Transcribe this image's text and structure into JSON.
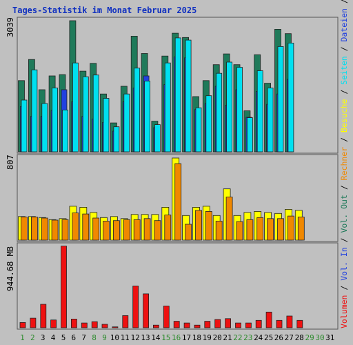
{
  "chart_data": [
    {
      "type": "bar",
      "title": "Tages-Statistik im Monat Februar 2025",
      "categories": [
        "1",
        "2",
        "3",
        "4",
        "5",
        "6",
        "7",
        "8",
        "9",
        "10",
        "11",
        "12",
        "13",
        "14",
        "15",
        "16",
        "17",
        "18",
        "19",
        "20",
        "21",
        "22",
        "23",
        "24",
        "25",
        "26",
        "27",
        "28",
        "29",
        "30",
        "31"
      ],
      "ymax_label": "3039",
      "ylim": [
        0,
        3039
      ],
      "grid": false,
      "legend": "right",
      "series": [
        {
          "name": "Anfragen",
          "color": "#1f7a5a",
          "values": [
            1650,
            2140,
            1440,
            1760,
            1790,
            3039,
            1870,
            2050,
            1340,
            670,
            1520,
            2680,
            2280,
            710,
            2220,
            2750,
            2650,
            1280,
            1650,
            2020,
            2270,
            2020,
            950,
            2250,
            1590,
            2840,
            2740,
            null,
            null,
            null,
            null
          ]
        },
        {
          "name": "Dateien",
          "color": "#2040e0",
          "values": [
            1050,
            820,
            820,
            960,
            1440,
            1160,
            820,
            760,
            680,
            480,
            1160,
            1480,
            1760,
            560,
            1560,
            2200,
            2180,
            980,
            1120,
            1520,
            1080,
            1440,
            800,
            1400,
            1100,
            1340,
            1680,
            null,
            null,
            null,
            null
          ]
        },
        {
          "name": "Seiten",
          "color": "#00e0f0",
          "values": [
            1200,
            1900,
            1120,
            1480,
            970,
            2060,
            1740,
            1780,
            1240,
            580,
            1340,
            1940,
            1640,
            630,
            2060,
            2640,
            2590,
            1020,
            1300,
            1820,
            2080,
            1960,
            790,
            1880,
            1480,
            2440,
            2520,
            null,
            null,
            null,
            null
          ]
        }
      ]
    },
    {
      "type": "bar",
      "categories": [
        "1",
        "2",
        "3",
        "4",
        "5",
        "6",
        "7",
        "8",
        "9",
        "10",
        "11",
        "12",
        "13",
        "14",
        "15",
        "16",
        "17",
        "18",
        "19",
        "20",
        "21",
        "22",
        "23",
        "24",
        "25",
        "26",
        "27",
        "28",
        "29",
        "30",
        "31"
      ],
      "ymax_label": "807",
      "ylim": [
        0,
        807
      ],
      "grid": false,
      "legend": "right",
      "series": [
        {
          "name": "Besuche",
          "color": "#ffff00",
          "values": [
            230,
            230,
            220,
            200,
            210,
            330,
            320,
            270,
            220,
            230,
            210,
            250,
            250,
            250,
            320,
            800,
            240,
            320,
            330,
            240,
            500,
            240,
            270,
            280,
            270,
            260,
            300,
            290,
            null,
            null,
            null
          ]
        },
        {
          "name": "Rechner",
          "color": "#f08800",
          "values": [
            225,
            225,
            215,
            195,
            200,
            265,
            255,
            215,
            185,
            190,
            200,
            200,
            210,
            190,
            245,
            745,
            155,
            290,
            280,
            185,
            420,
            180,
            200,
            220,
            210,
            210,
            235,
            225,
            null,
            null,
            null
          ]
        }
      ]
    },
    {
      "type": "bar",
      "categories": [
        "1",
        "2",
        "3",
        "4",
        "5",
        "6",
        "7",
        "8",
        "9",
        "10",
        "11",
        "12",
        "13",
        "14",
        "15",
        "16",
        "17",
        "18",
        "19",
        "20",
        "21",
        "22",
        "23",
        "24",
        "25",
        "26",
        "27",
        "28",
        "29",
        "30",
        "31"
      ],
      "ymax_label": "944.68 MB",
      "ylim": [
        0,
        944.68
      ],
      "grid": false,
      "legend": "right",
      "series": [
        {
          "name": "Volumen",
          "color": "#ee1111",
          "values": [
            60,
            110,
            270,
            90,
            940,
            100,
            55,
            70,
            40,
            10,
            140,
            480,
            390,
            30,
            250,
            75,
            55,
            30,
            75,
            95,
            105,
            55,
            55,
            85,
            180,
            85,
            135,
            85,
            null,
            null,
            null
          ]
        }
      ]
    }
  ],
  "legend_labels": [
    "Volumen",
    "Vol. In",
    "Vol. Out",
    "Rechner",
    "Besuche",
    "Seiten",
    "Dateien",
    "Anfragen"
  ],
  "legend_colors": {
    "Volumen": "#ee1111",
    "Vol. In": "#2040e0",
    "Vol. Out": "#1f7a5a",
    "Rechner": "#f08800",
    "Besuche": "#ffff00",
    "Seiten": "#00e0f0",
    "Dateien": "#2040e0",
    "Anfragen": "#1f7a5a"
  },
  "weekend_days": [
    "1",
    "2",
    "8",
    "9",
    "15",
    "16",
    "22",
    "23",
    "29",
    "30"
  ],
  "colors": {
    "background": "#c0c0c0",
    "panel": "#c0c0c0",
    "title": "#1030c0",
    "weekend_label": "#2b8a2b",
    "weekday_label": "#000000"
  }
}
